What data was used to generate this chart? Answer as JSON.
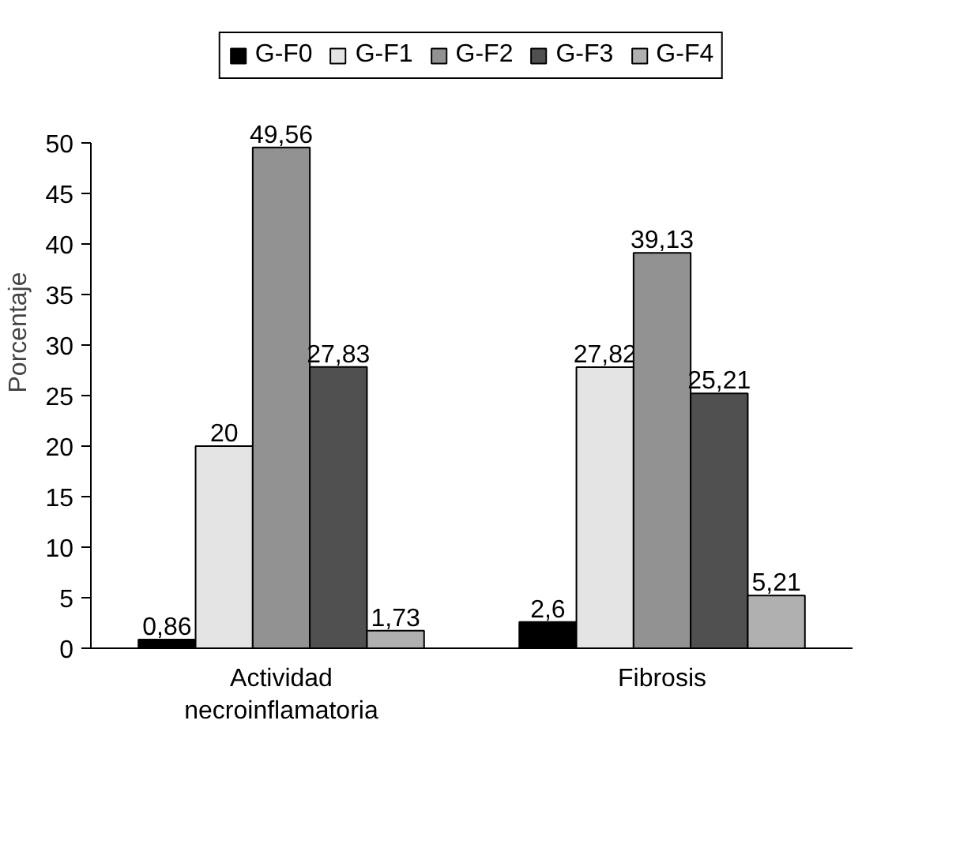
{
  "chart_data": {
    "type": "bar",
    "ylabel": "Porcentaje",
    "categories": [
      "Actividad\nnecroinflamatoria",
      "Fibrosis"
    ],
    "series": [
      {
        "name": "G-F0",
        "color": "#000000",
        "values": [
          0.86,
          2.6
        ],
        "value_labels": [
          "0,86",
          "2,6"
        ]
      },
      {
        "name": "G-F1",
        "color": "#e4e4e4",
        "values": [
          20,
          27.82
        ],
        "value_labels": [
          "20",
          "27,82"
        ]
      },
      {
        "name": "G-F2",
        "color": "#929292",
        "values": [
          49.56,
          39.13
        ],
        "value_labels": [
          "49,56",
          "39,13"
        ]
      },
      {
        "name": "G-F3",
        "color": "#505050",
        "values": [
          27.83,
          25.21
        ],
        "value_labels": [
          "27,83",
          "25,21"
        ]
      },
      {
        "name": "G-F4",
        "color": "#b0b0b0",
        "values": [
          1.73,
          5.21
        ],
        "value_labels": [
          "1,73",
          "5,21"
        ]
      }
    ],
    "ylim": [
      0,
      50
    ],
    "yticks": [
      0,
      5,
      10,
      15,
      20,
      25,
      30,
      35,
      40,
      45,
      50
    ],
    "grid": false,
    "legend": "top"
  }
}
